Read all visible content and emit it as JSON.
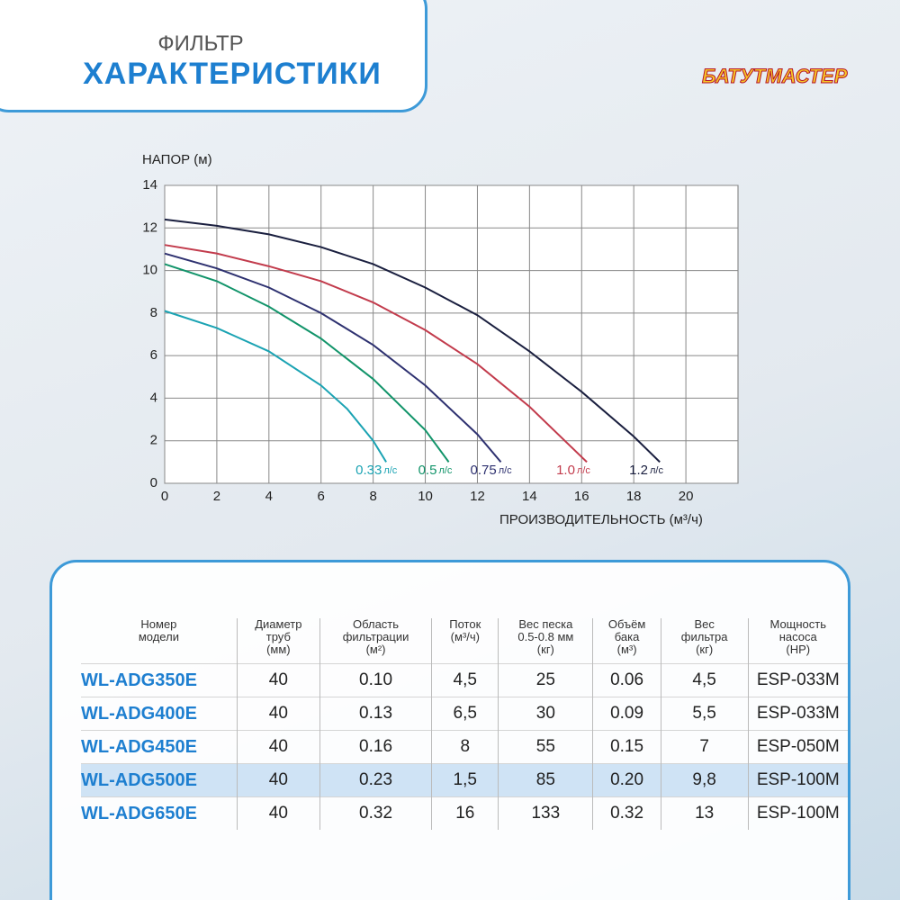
{
  "header": {
    "subtitle": "ФИЛЬТР",
    "title": "ХАРАКТЕРИСТИКИ"
  },
  "logo": {
    "text": "БАТУТМАСТЕР"
  },
  "chart_data": {
    "type": "line",
    "y_label": "НАПОР (м)",
    "x_label": "ПРОИЗВОДИТЕЛЬНОСТЬ (м³/ч)",
    "xlim": [
      0,
      22
    ],
    "xticks": [
      0,
      2,
      4,
      6,
      8,
      10,
      12,
      14,
      16,
      18,
      20
    ],
    "ylim": [
      0,
      14
    ],
    "yticks": [
      0,
      2,
      4,
      6,
      8,
      10,
      12,
      14
    ],
    "grid": true,
    "series_unit": "л/с",
    "series": [
      {
        "name": "0.33",
        "color": "#1ba3b3",
        "x": [
          0,
          2,
          4,
          6,
          7,
          8,
          8.5
        ],
        "values": [
          8.1,
          7.3,
          6.2,
          4.6,
          3.5,
          2.0,
          1.0
        ]
      },
      {
        "name": "0.5",
        "color": "#12946a",
        "x": [
          0,
          2,
          4,
          6,
          8,
          10,
          10.9
        ],
        "values": [
          10.3,
          9.5,
          8.3,
          6.8,
          4.9,
          2.5,
          1.0
        ]
      },
      {
        "name": "0.75",
        "color": "#2e3170",
        "x": [
          0,
          2,
          4,
          6,
          8,
          10,
          12,
          12.9
        ],
        "values": [
          10.8,
          10.1,
          9.2,
          8.0,
          6.5,
          4.6,
          2.3,
          1.0
        ]
      },
      {
        "name": "1.0",
        "color": "#c23b4c",
        "x": [
          0,
          2,
          4,
          6,
          8,
          10,
          12,
          14,
          16.2
        ],
        "values": [
          11.2,
          10.8,
          10.2,
          9.5,
          8.5,
          7.2,
          5.6,
          3.6,
          1.0
        ]
      },
      {
        "name": "1.2",
        "color": "#1a1f3f",
        "x": [
          0,
          2,
          4,
          6,
          8,
          10,
          12,
          14,
          16,
          18,
          19
        ],
        "values": [
          12.4,
          12.1,
          11.7,
          11.1,
          10.3,
          9.2,
          7.9,
          6.2,
          4.3,
          2.2,
          1.0
        ]
      }
    ]
  },
  "table": {
    "header": [
      [
        "Номер",
        "модели"
      ],
      [
        "Диаметр",
        "труб",
        "(мм)"
      ],
      [
        "Область",
        "фильтрации",
        "(м²)"
      ],
      [
        "Поток",
        "(м³/ч)"
      ],
      [
        "Вес песка",
        "0.5-0.8 мм",
        "(кг)"
      ],
      [
        "Объём",
        "бака",
        "(м³)"
      ],
      [
        "Вес",
        "фильтра",
        "(кг)"
      ],
      [
        "Мощность",
        "насоса",
        "(HP)"
      ]
    ],
    "rows": [
      [
        "WL-ADG350E",
        "40",
        "0.10",
        "4,5",
        "25",
        "0.06",
        "4,5",
        "ESP-033M"
      ],
      [
        "WL-ADG400E",
        "40",
        "0.13",
        "6,5",
        "30",
        "0.09",
        "5,5",
        "ESP-033M"
      ],
      [
        "WL-ADG450E",
        "40",
        "0.16",
        "8",
        "55",
        "0.15",
        "7",
        "ESP-050M"
      ],
      [
        "WL-ADG500E",
        "40",
        "0.23",
        "1,5",
        "85",
        "0.20",
        "9,8",
        "ESP-100M"
      ],
      [
        "WL-ADG650E",
        "40",
        "0.32",
        "16",
        "133",
        "0.32",
        "13",
        "ESP-100M"
      ]
    ]
  }
}
